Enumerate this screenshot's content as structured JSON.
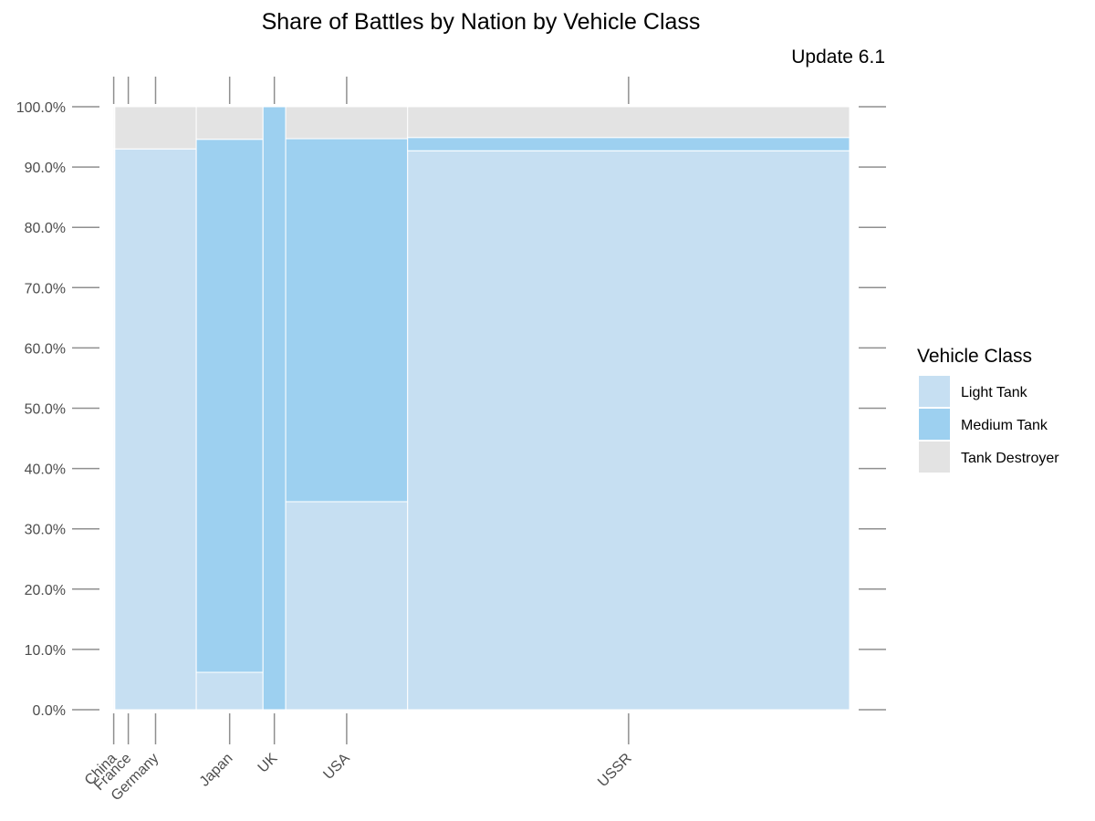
{
  "chart_data": {
    "type": "bar",
    "subtype": "mosaic (variable-width stacked 100% bar)",
    "title": "Share of Battles by Nation by Vehicle Class",
    "subtitle": "Update 6.1",
    "xlabel": "",
    "ylabel": "",
    "ylim": [
      0,
      1
    ],
    "y_ticks": [
      "0.0%",
      "10.0%",
      "20.0%",
      "30.0%",
      "40.0%",
      "50.0%",
      "60.0%",
      "70.0%",
      "80.0%",
      "90.0%",
      "100.0%"
    ],
    "grid": false,
    "legend": {
      "title": "Vehicle Class",
      "position": "right"
    },
    "categories": [
      "China",
      "France",
      "Germany",
      "Japan",
      "UK",
      "USA",
      "USSR"
    ],
    "category_share": [
      0.0015,
      0.0008,
      0.1106,
      0.0906,
      0.0308,
      0.1656,
      0.6001
    ],
    "series": [
      {
        "name": "Light Tank",
        "color": "#c6dff2",
        "values": [
          0.93,
          0.93,
          0.93,
          0.062,
          0.0,
          0.345,
          0.927
        ]
      },
      {
        "name": "Medium Tank",
        "color": "#9dd0f0",
        "values": [
          0.0,
          0.0,
          0.0,
          0.884,
          1.0,
          0.602,
          0.022
        ]
      },
      {
        "name": "Tank Destroyer",
        "color": "#e3e3e3",
        "values": [
          0.07,
          0.07,
          0.07,
          0.054,
          0.0,
          0.053,
          0.051
        ]
      }
    ]
  }
}
